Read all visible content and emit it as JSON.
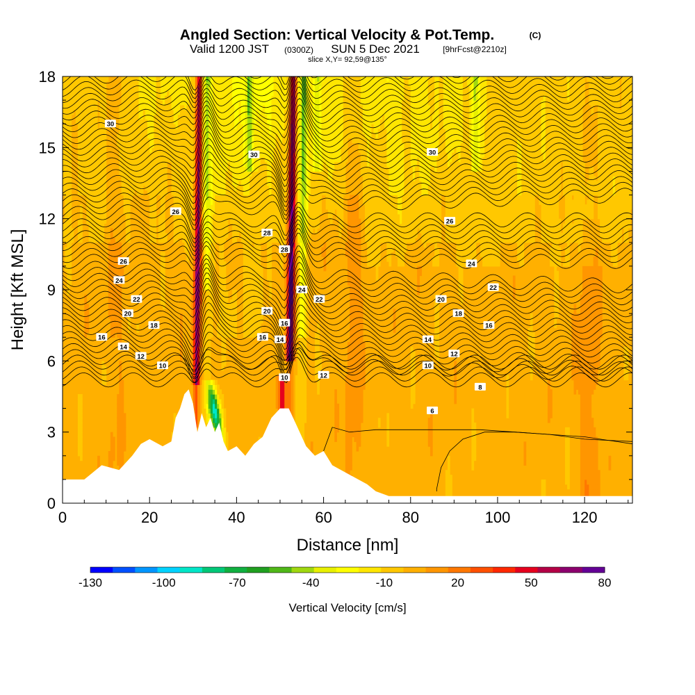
{
  "title_main": "Angled Section: Vertical Velocity & Pot.Temp.",
  "title_unit": "(C)",
  "subtitle_valid": "Valid 1200 JST",
  "subtitle_utc": "(0300Z)",
  "subtitle_date": "SUN 5 Dec 2021",
  "subtitle_fcst": "[9hrFcst@2210z]",
  "slice_label": "slice X,Y= 92,59@135°",
  "colors": {
    "background": "#ffffff",
    "contour_line": "#000000",
    "terrain": "#ffffff"
  },
  "chart_data": {
    "type": "heatmap",
    "xlabel": "Distance [nm]",
    "ylabel": "Height [Kft MSL]",
    "xlim": [
      0,
      131
    ],
    "ylim": [
      0,
      18
    ],
    "x_ticks": [
      0,
      20,
      40,
      60,
      80,
      100,
      120
    ],
    "y_ticks": [
      0,
      3,
      6,
      9,
      12,
      15,
      18
    ],
    "colorbar": {
      "label": "Vertical Velocity [cm/s]",
      "tick_labels": [
        "-130",
        "-100",
        "-70",
        "-40",
        "-10",
        "20",
        "50",
        "80"
      ],
      "tick_values": [
        -130,
        -100,
        -70,
        -40,
        -10,
        20,
        50,
        80
      ],
      "colors": [
        "#0000ff",
        "#0050ff",
        "#0096ff",
        "#00d2ff",
        "#00e6c8",
        "#00c878",
        "#10b040",
        "#20a020",
        "#50b818",
        "#a0d810",
        "#e8f000",
        "#ffff00",
        "#ffe600",
        "#ffc800",
        "#ffb000",
        "#ff9600",
        "#ff7800",
        "#ff5000",
        "#ff2800",
        "#e6001e",
        "#b40046",
        "#8c006e",
        "#640096"
      ]
    },
    "terrain_profile": {
      "x": [
        0,
        5,
        9,
        13,
        16,
        18,
        20,
        23,
        25,
        26,
        27,
        28,
        29,
        30,
        31,
        32,
        33,
        34,
        35,
        36,
        37,
        38,
        40,
        42,
        44,
        46,
        48,
        50,
        52,
        54,
        56,
        58,
        60,
        62,
        64,
        66,
        68,
        70,
        72,
        75,
        80,
        90,
        100,
        110,
        120,
        131
      ],
      "y": [
        1.0,
        1.0,
        1.6,
        1.4,
        2.0,
        2.5,
        2.7,
        2.4,
        2.6,
        3.6,
        4.0,
        4.6,
        4.8,
        4.2,
        3.0,
        3.8,
        3.2,
        3.6,
        3.0,
        3.4,
        2.6,
        2.2,
        2.4,
        2.0,
        2.5,
        2.8,
        3.6,
        4.0,
        4.0,
        3.2,
        2.4,
        2.0,
        2.2,
        1.6,
        1.4,
        1.2,
        1.0,
        0.8,
        0.5,
        0.3,
        0.3,
        0.3,
        0.3,
        0.3,
        0.3,
        0.3
      ]
    },
    "updraft_columns": [
      {
        "x": 31,
        "peak_value_cm_s": 50
      },
      {
        "x": 53,
        "peak_value_cm_s": 60
      }
    ],
    "isentropes_C": [
      6,
      8,
      10,
      12,
      14,
      16,
      18,
      20,
      22,
      24,
      26,
      28,
      30
    ],
    "isentrope_labels": [
      "30",
      "30",
      "30",
      "26",
      "28",
      "26",
      "28",
      "26",
      "24",
      "24",
      "24",
      "22",
      "22",
      "22",
      "20",
      "20",
      "20",
      "18",
      "18",
      "16",
      "16",
      "16",
      "16",
      "14",
      "14",
      "14",
      "12",
      "12",
      "12",
      "10",
      "10",
      "10",
      "8",
      "6"
    ]
  }
}
